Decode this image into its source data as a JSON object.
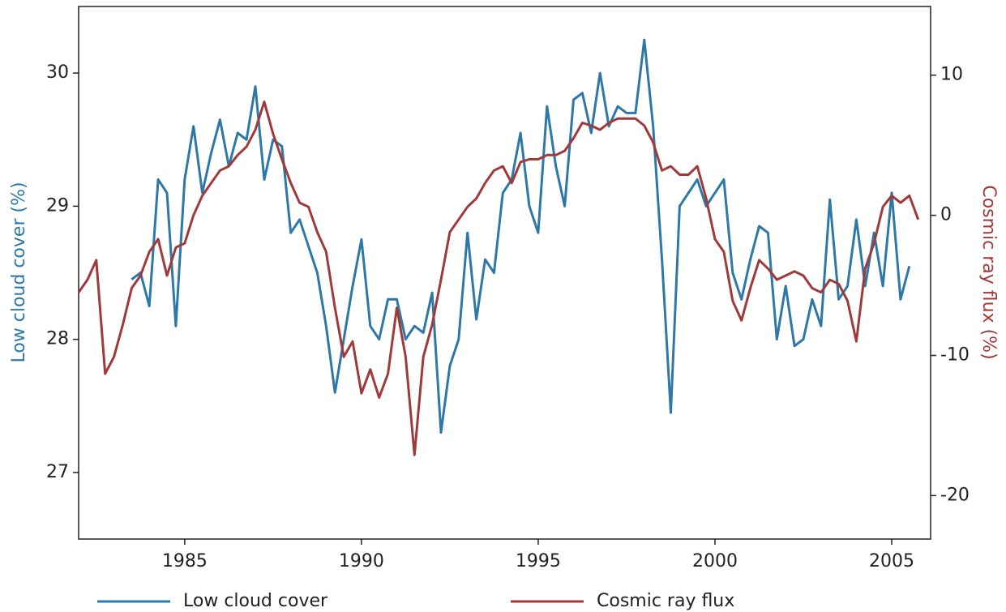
{
  "chart_data": {
    "type": "line",
    "x": [
      1982,
      1982.25,
      1982.5,
      1982.75,
      1983,
      1983.25,
      1983.5,
      1983.75,
      1984,
      1984.25,
      1984.5,
      1984.75,
      1985,
      1985.25,
      1985.5,
      1985.75,
      1986,
      1986.25,
      1986.5,
      1986.75,
      1987,
      1987.25,
      1987.5,
      1987.75,
      1988,
      1988.25,
      1988.5,
      1988.75,
      1989,
      1989.25,
      1989.5,
      1989.75,
      1990,
      1990.25,
      1990.5,
      1990.75,
      1991,
      1991.25,
      1991.5,
      1991.75,
      1992,
      1992.25,
      1992.5,
      1992.75,
      1993,
      1993.25,
      1993.5,
      1993.75,
      1994,
      1994.25,
      1994.5,
      1994.75,
      1995,
      1995.25,
      1995.5,
      1995.75,
      1996,
      1996.25,
      1996.5,
      1996.75,
      1997,
      1997.25,
      1997.5,
      1997.75,
      1998,
      1998.25,
      1998.5,
      1998.75,
      1999,
      1999.25,
      1999.5,
      1999.75,
      2000,
      2000.25,
      2000.5,
      2000.75,
      2001,
      2001.25,
      2001.5,
      2001.75,
      2002,
      2002.25,
      2002.5,
      2002.75,
      2003,
      2003.25,
      2003.5,
      2003.75,
      2004,
      2004.25,
      2004.5,
      2004.75,
      2005,
      2005.25,
      2005.5,
      2005.75
    ],
    "series": [
      {
        "name": "Low cloud cover",
        "color": "#2e78a8",
        "axis": "y",
        "values": [
          null,
          null,
          null,
          null,
          null,
          null,
          28.45,
          28.5,
          28.25,
          29.2,
          29.1,
          28.1,
          29.2,
          29.6,
          29.1,
          29.4,
          29.65,
          29.3,
          29.55,
          29.5,
          29.9,
          29.2,
          29.5,
          29.45,
          28.8,
          28.9,
          28.7,
          28.5,
          28.1,
          27.6,
          28.0,
          28.4,
          28.75,
          28.1,
          28.0,
          28.3,
          28.3,
          28.0,
          28.1,
          28.05,
          28.35,
          27.3,
          27.8,
          28.0,
          28.8,
          28.15,
          28.6,
          28.5,
          29.1,
          29.2,
          29.55,
          29.0,
          28.8,
          29.75,
          29.3,
          29.0,
          29.8,
          29.85,
          29.55,
          30.0,
          29.6,
          29.75,
          29.7,
          29.7,
          30.25,
          29.6,
          28.6,
          27.45,
          29.0,
          29.1,
          29.2,
          29.0,
          29.1,
          29.2,
          28.5,
          28.3,
          28.6,
          28.85,
          28.8,
          28.0,
          28.4,
          27.95,
          28.0,
          28.3,
          28.1,
          29.05,
          28.3,
          28.4,
          28.9,
          28.4,
          28.8,
          28.4,
          29.1,
          28.3,
          28.55,
          null
        ]
      },
      {
        "name": "Cosmic ray flux",
        "color": "#a03a3a",
        "axis": "y2",
        "values": [
          -5.5,
          -4.6,
          -3.2,
          -11.3,
          -10.1,
          -7.8,
          -5.2,
          -4.3,
          -2.6,
          -1.7,
          -4.3,
          -2.3,
          -2.0,
          0,
          1.4,
          2.3,
          3.2,
          3.5,
          4.3,
          4.9,
          6.1,
          8.1,
          5.8,
          4.0,
          2.3,
          0.9,
          0.6,
          -1.2,
          -2.6,
          -6.6,
          -10.1,
          -9.0,
          -12.7,
          -11.0,
          -13.0,
          -11.3,
          -6.6,
          -10.1,
          -17.1,
          -10.1,
          -7.8,
          -4.6,
          -1.2,
          -0.3,
          0.6,
          1.2,
          2.3,
          3.2,
          3.5,
          2.3,
          3.8,
          4.0,
          4.0,
          4.3,
          4.3,
          4.6,
          5.5,
          6.6,
          6.4,
          6.1,
          6.6,
          6.9,
          6.9,
          6.9,
          6.4,
          5.2,
          3.2,
          3.5,
          2.9,
          2.9,
          3.5,
          1.2,
          -1.7,
          -2.6,
          -6.1,
          -7.5,
          -5.2,
          -3.2,
          -3.8,
          -4.6,
          -4.3,
          -4.0,
          -4.3,
          -5.2,
          -5.5,
          -4.6,
          -4.9,
          -6.1,
          -9.0,
          -3.8,
          -2.0,
          0.6,
          1.4,
          0.9,
          1.4,
          -0.3
        ]
      }
    ],
    "ylabel": "Low cloud cover (%)",
    "y2label": "Cosmic ray flux (%)",
    "xlim": [
      1982,
      2006.1
    ],
    "xticks": [
      1985,
      1990,
      1995,
      2000,
      2005
    ],
    "ylim": [
      26.5,
      30.5
    ],
    "yticks": [
      27,
      28,
      29,
      30
    ],
    "y2lim": [
      -23.1,
      14.9
    ],
    "y2ticks": [
      -20,
      -10,
      0,
      10
    ],
    "legend": "bottom",
    "grid": false
  }
}
